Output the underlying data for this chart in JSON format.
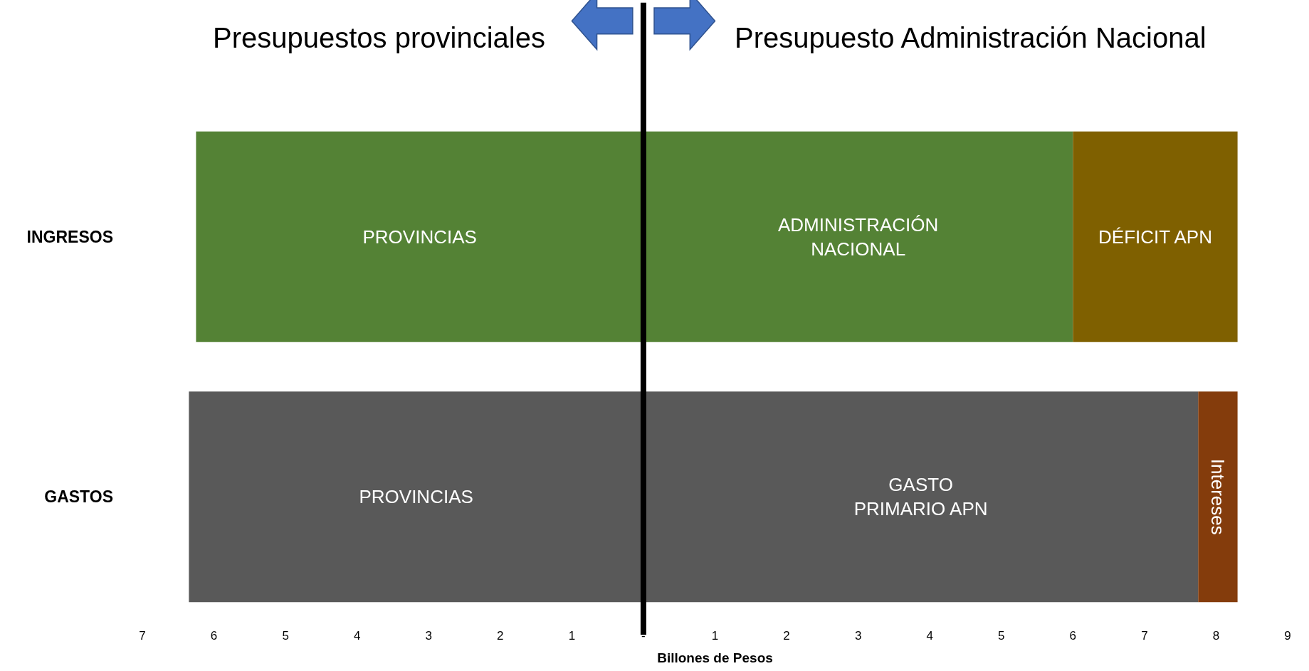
{
  "chart_data": {
    "type": "bar",
    "orientation": "horizontal",
    "stacked": true,
    "annotations": [
      "Presupuestos provinciales",
      "Presupuesto Administración Nacional"
    ],
    "xlabel": "Billones de Pesos",
    "categories": [
      "INGRESOS",
      "GASTOS"
    ],
    "series": [
      {
        "colors": [
          "#548235",
          "#595959"
        ],
        "values": [
          -6.25,
          -6.35
        ],
        "value_labels": [
          "PROVINCIAS",
          "PROVINCIAS"
        ]
      },
      {
        "colors": [
          "#548235",
          "#595959"
        ],
        "values": [
          6.0,
          7.75
        ],
        "value_labels": [
          "ADMINISTRACIÓN NACIONAL",
          "GASTO PRIMARIO APN"
        ]
      },
      {
        "colors": [
          "#7f6000",
          "#843c0c"
        ],
        "values": [
          2.3,
          0.55
        ],
        "value_labels": [
          "DÉFICIT APN",
          "Intereses"
        ]
      }
    ],
    "xlim": [
      -7,
      9
    ],
    "xticks": [
      {
        "value": -7,
        "label": "7"
      },
      {
        "value": -6,
        "label": "6"
      },
      {
        "value": -5,
        "label": "5"
      },
      {
        "value": -4,
        "label": "4"
      },
      {
        "value": -3,
        "label": "3"
      },
      {
        "value": -2,
        "label": "2"
      },
      {
        "value": -1,
        "label": "1"
      },
      {
        "value": 0,
        "label": "-"
      },
      1,
      2,
      3,
      4,
      5,
      6,
      7,
      8,
      9
    ],
    "ref_lines": [
      {
        "axis": "x",
        "value": 0,
        "color": "#000000"
      }
    ]
  }
}
